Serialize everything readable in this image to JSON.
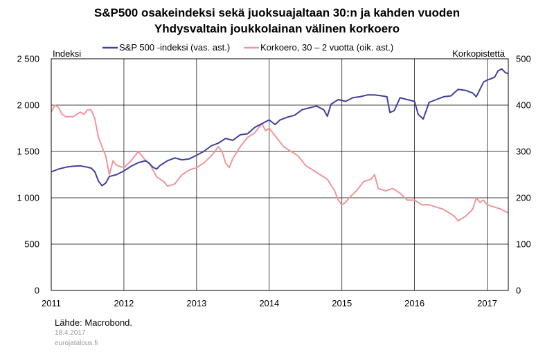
{
  "chart_data": {
    "type": "line",
    "title": [
      "S&P500 osakeindeksi sekä juoksuajaltaan 30:n ja kahden vuoden",
      "Yhdysvaltain joukkolainan välinen korkoero"
    ],
    "left_axis_title": "Indeksi",
    "right_axis_title": "Korkopistettä",
    "left_ticks": [
      "0",
      "500",
      "1 000",
      "1 500",
      "2 000",
      "2 500"
    ],
    "right_ticks": [
      "0",
      "100",
      "200",
      "300",
      "400",
      "500"
    ],
    "left_range": [
      0,
      2500
    ],
    "right_range": [
      0,
      500
    ],
    "x_ticks": [
      "2011",
      "2012",
      "2013",
      "2014",
      "2015",
      "2016",
      "2017"
    ],
    "x_range": [
      2011.0,
      2017.29
    ],
    "grid": true,
    "legend_position": "top",
    "series": [
      {
        "name": "S&P 500 -indeksi (vas. ast.)",
        "axis": "left",
        "color": "#3f3f9f",
        "x": [
          2011.0,
          2011.1,
          2011.2,
          2011.3,
          2011.4,
          2011.5,
          2011.55,
          2011.6,
          2011.65,
          2011.7,
          2011.75,
          2011.8,
          2011.9,
          2012.0,
          2012.1,
          2012.2,
          2012.3,
          2012.35,
          2012.4,
          2012.45,
          2012.5,
          2012.6,
          2012.7,
          2012.8,
          2012.9,
          2013.0,
          2013.1,
          2013.2,
          2013.3,
          2013.4,
          2013.5,
          2013.6,
          2013.7,
          2013.8,
          2013.9,
          2014.0,
          2014.08,
          2014.15,
          2014.25,
          2014.35,
          2014.45,
          2014.55,
          2014.65,
          2014.75,
          2014.8,
          2014.85,
          2014.95,
          2015.05,
          2015.15,
          2015.25,
          2015.35,
          2015.45,
          2015.55,
          2015.62,
          2015.66,
          2015.72,
          2015.8,
          2015.9,
          2016.0,
          2016.05,
          2016.12,
          2016.2,
          2016.3,
          2016.4,
          2016.5,
          2016.6,
          2016.7,
          2016.8,
          2016.85,
          2016.9,
          2016.95,
          2017.0,
          2017.1,
          2017.15,
          2017.2,
          2017.25,
          2017.29
        ],
        "y": [
          1280,
          1310,
          1330,
          1340,
          1345,
          1330,
          1320,
          1280,
          1180,
          1130,
          1160,
          1230,
          1250,
          1290,
          1340,
          1380,
          1400,
          1370,
          1330,
          1310,
          1350,
          1400,
          1430,
          1410,
          1420,
          1460,
          1500,
          1560,
          1590,
          1640,
          1620,
          1680,
          1690,
          1760,
          1800,
          1840,
          1790,
          1840,
          1870,
          1890,
          1950,
          1970,
          1990,
          1950,
          1880,
          2010,
          2060,
          2040,
          2080,
          2090,
          2110,
          2110,
          2100,
          2090,
          1920,
          1940,
          2080,
          2060,
          2040,
          1900,
          1850,
          2030,
          2060,
          2090,
          2100,
          2170,
          2160,
          2130,
          2090,
          2170,
          2250,
          2270,
          2300,
          2370,
          2390,
          2350,
          2340
        ]
      },
      {
        "name": "Korkoero, 30 – 2 vuotta (oik. ast.)",
        "axis": "right",
        "color": "#f0959a",
        "x": [
          2011.0,
          2011.05,
          2011.1,
          2011.15,
          2011.2,
          2011.3,
          2011.4,
          2011.45,
          2011.5,
          2011.55,
          2011.6,
          2011.65,
          2011.7,
          2011.75,
          2011.8,
          2011.85,
          2011.9,
          2012.0,
          2012.1,
          2012.2,
          2012.25,
          2012.3,
          2012.35,
          2012.4,
          2012.45,
          2012.5,
          2012.55,
          2012.6,
          2012.7,
          2012.8,
          2012.9,
          2013.0,
          2013.1,
          2013.2,
          2013.3,
          2013.35,
          2013.4,
          2013.45,
          2013.5,
          2013.6,
          2013.7,
          2013.8,
          2013.9,
          2013.95,
          2014.0,
          2014.05,
          2014.1,
          2014.2,
          2014.3,
          2014.4,
          2014.5,
          2014.6,
          2014.7,
          2014.8,
          2014.9,
          2014.95,
          2015.0,
          2015.05,
          2015.1,
          2015.2,
          2015.3,
          2015.4,
          2015.45,
          2015.5,
          2015.6,
          2015.7,
          2015.8,
          2015.9,
          2016.0,
          2016.1,
          2016.2,
          2016.3,
          2016.4,
          2016.5,
          2016.55,
          2016.6,
          2016.65,
          2016.7,
          2016.8,
          2016.85,
          2016.9,
          2016.95,
          2017.0,
          2017.1,
          2017.2,
          2017.25,
          2017.29
        ],
        "y": [
          385,
          400,
          395,
          380,
          375,
          375,
          385,
          380,
          390,
          390,
          370,
          330,
          310,
          290,
          250,
          280,
          270,
          265,
          280,
          300,
          290,
          280,
          275,
          260,
          245,
          240,
          235,
          225,
          230,
          250,
          260,
          265,
          275,
          290,
          310,
          300,
          275,
          265,
          285,
          310,
          330,
          340,
          360,
          345,
          350,
          340,
          330,
          310,
          300,
          290,
          270,
          260,
          250,
          240,
          215,
          195,
          185,
          190,
          200,
          215,
          235,
          240,
          250,
          220,
          215,
          220,
          210,
          195,
          195,
          185,
          185,
          180,
          175,
          165,
          160,
          150,
          155,
          160,
          175,
          200,
          190,
          195,
          185,
          180,
          175,
          170,
          168
        ]
      }
    ]
  },
  "source": "Lähde: Macrobond.",
  "date": "18.4.2017",
  "site": "eurojatalous.fi"
}
